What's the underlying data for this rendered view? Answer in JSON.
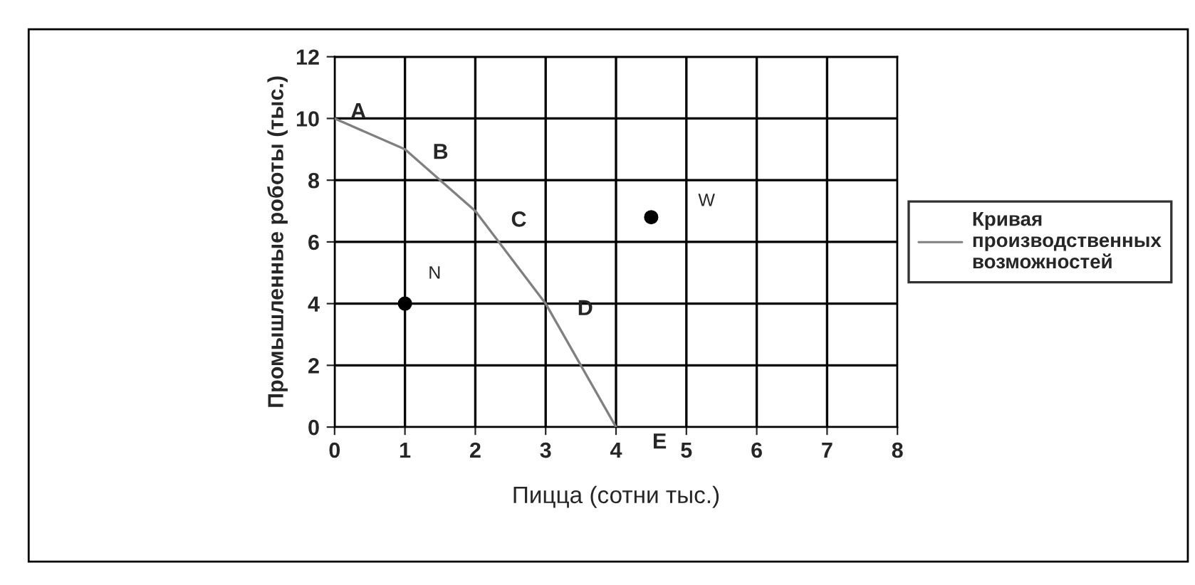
{
  "chart_data": {
    "type": "line",
    "xlabel": "Пицца (сотни тыс.)",
    "ylabel": "Промышленные роботы (тыс.)",
    "series": [
      {
        "name": "Кривая производственных возможностей",
        "marker": "none",
        "color": "#808080",
        "x": [
          0,
          1,
          2,
          3,
          4
        ],
        "values": [
          10,
          9,
          7,
          4,
          0
        ]
      },
      {
        "type": "scatter",
        "marker": "circle",
        "color": "#000000",
        "x": [
          1,
          4.5
        ],
        "values": [
          4,
          6.8
        ]
      }
    ],
    "xlim": [
      0,
      8
    ],
    "xticks": [
      0,
      1,
      2,
      3,
      4,
      5,
      6,
      7,
      8
    ],
    "ylim": [
      0,
      12
    ],
    "yticks": [
      0,
      2,
      4,
      6,
      8,
      10,
      12
    ],
    "grid": true,
    "legend": "right",
    "annotations": [
      {
        "text": "A",
        "x": 0,
        "y": 10
      },
      {
        "text": "B",
        "x": 1,
        "y": 9
      },
      {
        "text": "C",
        "x": 2,
        "y": 7
      },
      {
        "text": "D",
        "x": 3,
        "y": 4
      },
      {
        "text": "E",
        "x": 4,
        "y": 0
      },
      {
        "text": "N",
        "x": 1,
        "y": 4
      },
      {
        "text": "W",
        "x": 4.5,
        "y": 6.8
      }
    ]
  }
}
